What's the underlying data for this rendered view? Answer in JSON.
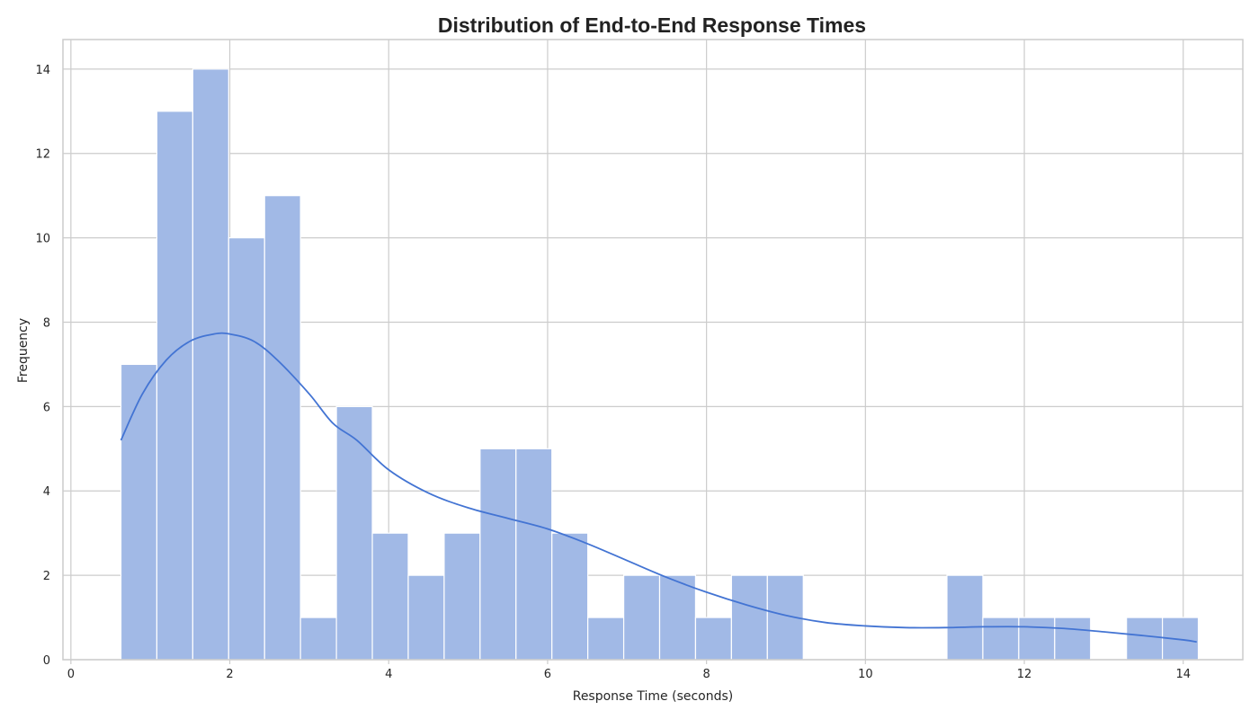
{
  "chart_data": {
    "type": "bar",
    "subtype": "histogram",
    "title": "Distribution of End-to-End Response Times",
    "xlabel": "Response Time (seconds)",
    "ylabel": "Frequency",
    "xlim": [
      -0.1,
      14.75
    ],
    "ylim": [
      0,
      14.7
    ],
    "xticks": [
      0,
      2,
      4,
      6,
      8,
      10,
      12,
      14
    ],
    "yticks": [
      0,
      2,
      4,
      6,
      8,
      10,
      12,
      14
    ],
    "grid": true,
    "bin_start": 0.63,
    "bin_width": 0.452,
    "counts": [
      7,
      13,
      14,
      10,
      11,
      1,
      6,
      3,
      2,
      3,
      5,
      5,
      3,
      1,
      2,
      2,
      1,
      2,
      2,
      0,
      0,
      0,
      0,
      2,
      1,
      1,
      1,
      0,
      1,
      1
    ],
    "kde": {
      "x": [
        0.63,
        0.9,
        1.2,
        1.5,
        1.8,
        2.0,
        2.3,
        2.6,
        3.0,
        3.3,
        3.6,
        4.0,
        4.5,
        5.0,
        5.5,
        6.0,
        6.5,
        7.0,
        7.5,
        8.0,
        8.5,
        9.0,
        9.5,
        10.0,
        10.5,
        11.0,
        11.5,
        12.0,
        12.5,
        13.0,
        13.5,
        14.0,
        14.17
      ],
      "y": [
        5.2,
        6.3,
        7.1,
        7.55,
        7.72,
        7.72,
        7.55,
        7.1,
        6.3,
        5.6,
        5.2,
        4.5,
        3.95,
        3.6,
        3.35,
        3.1,
        2.75,
        2.35,
        1.95,
        1.6,
        1.3,
        1.05,
        0.88,
        0.8,
        0.76,
        0.76,
        0.78,
        0.78,
        0.74,
        0.66,
        0.57,
        0.47,
        0.42
      ]
    },
    "colors": {
      "bar": "#a1b9e6",
      "kde": "#4374d3",
      "grid": "#cccccc"
    }
  }
}
